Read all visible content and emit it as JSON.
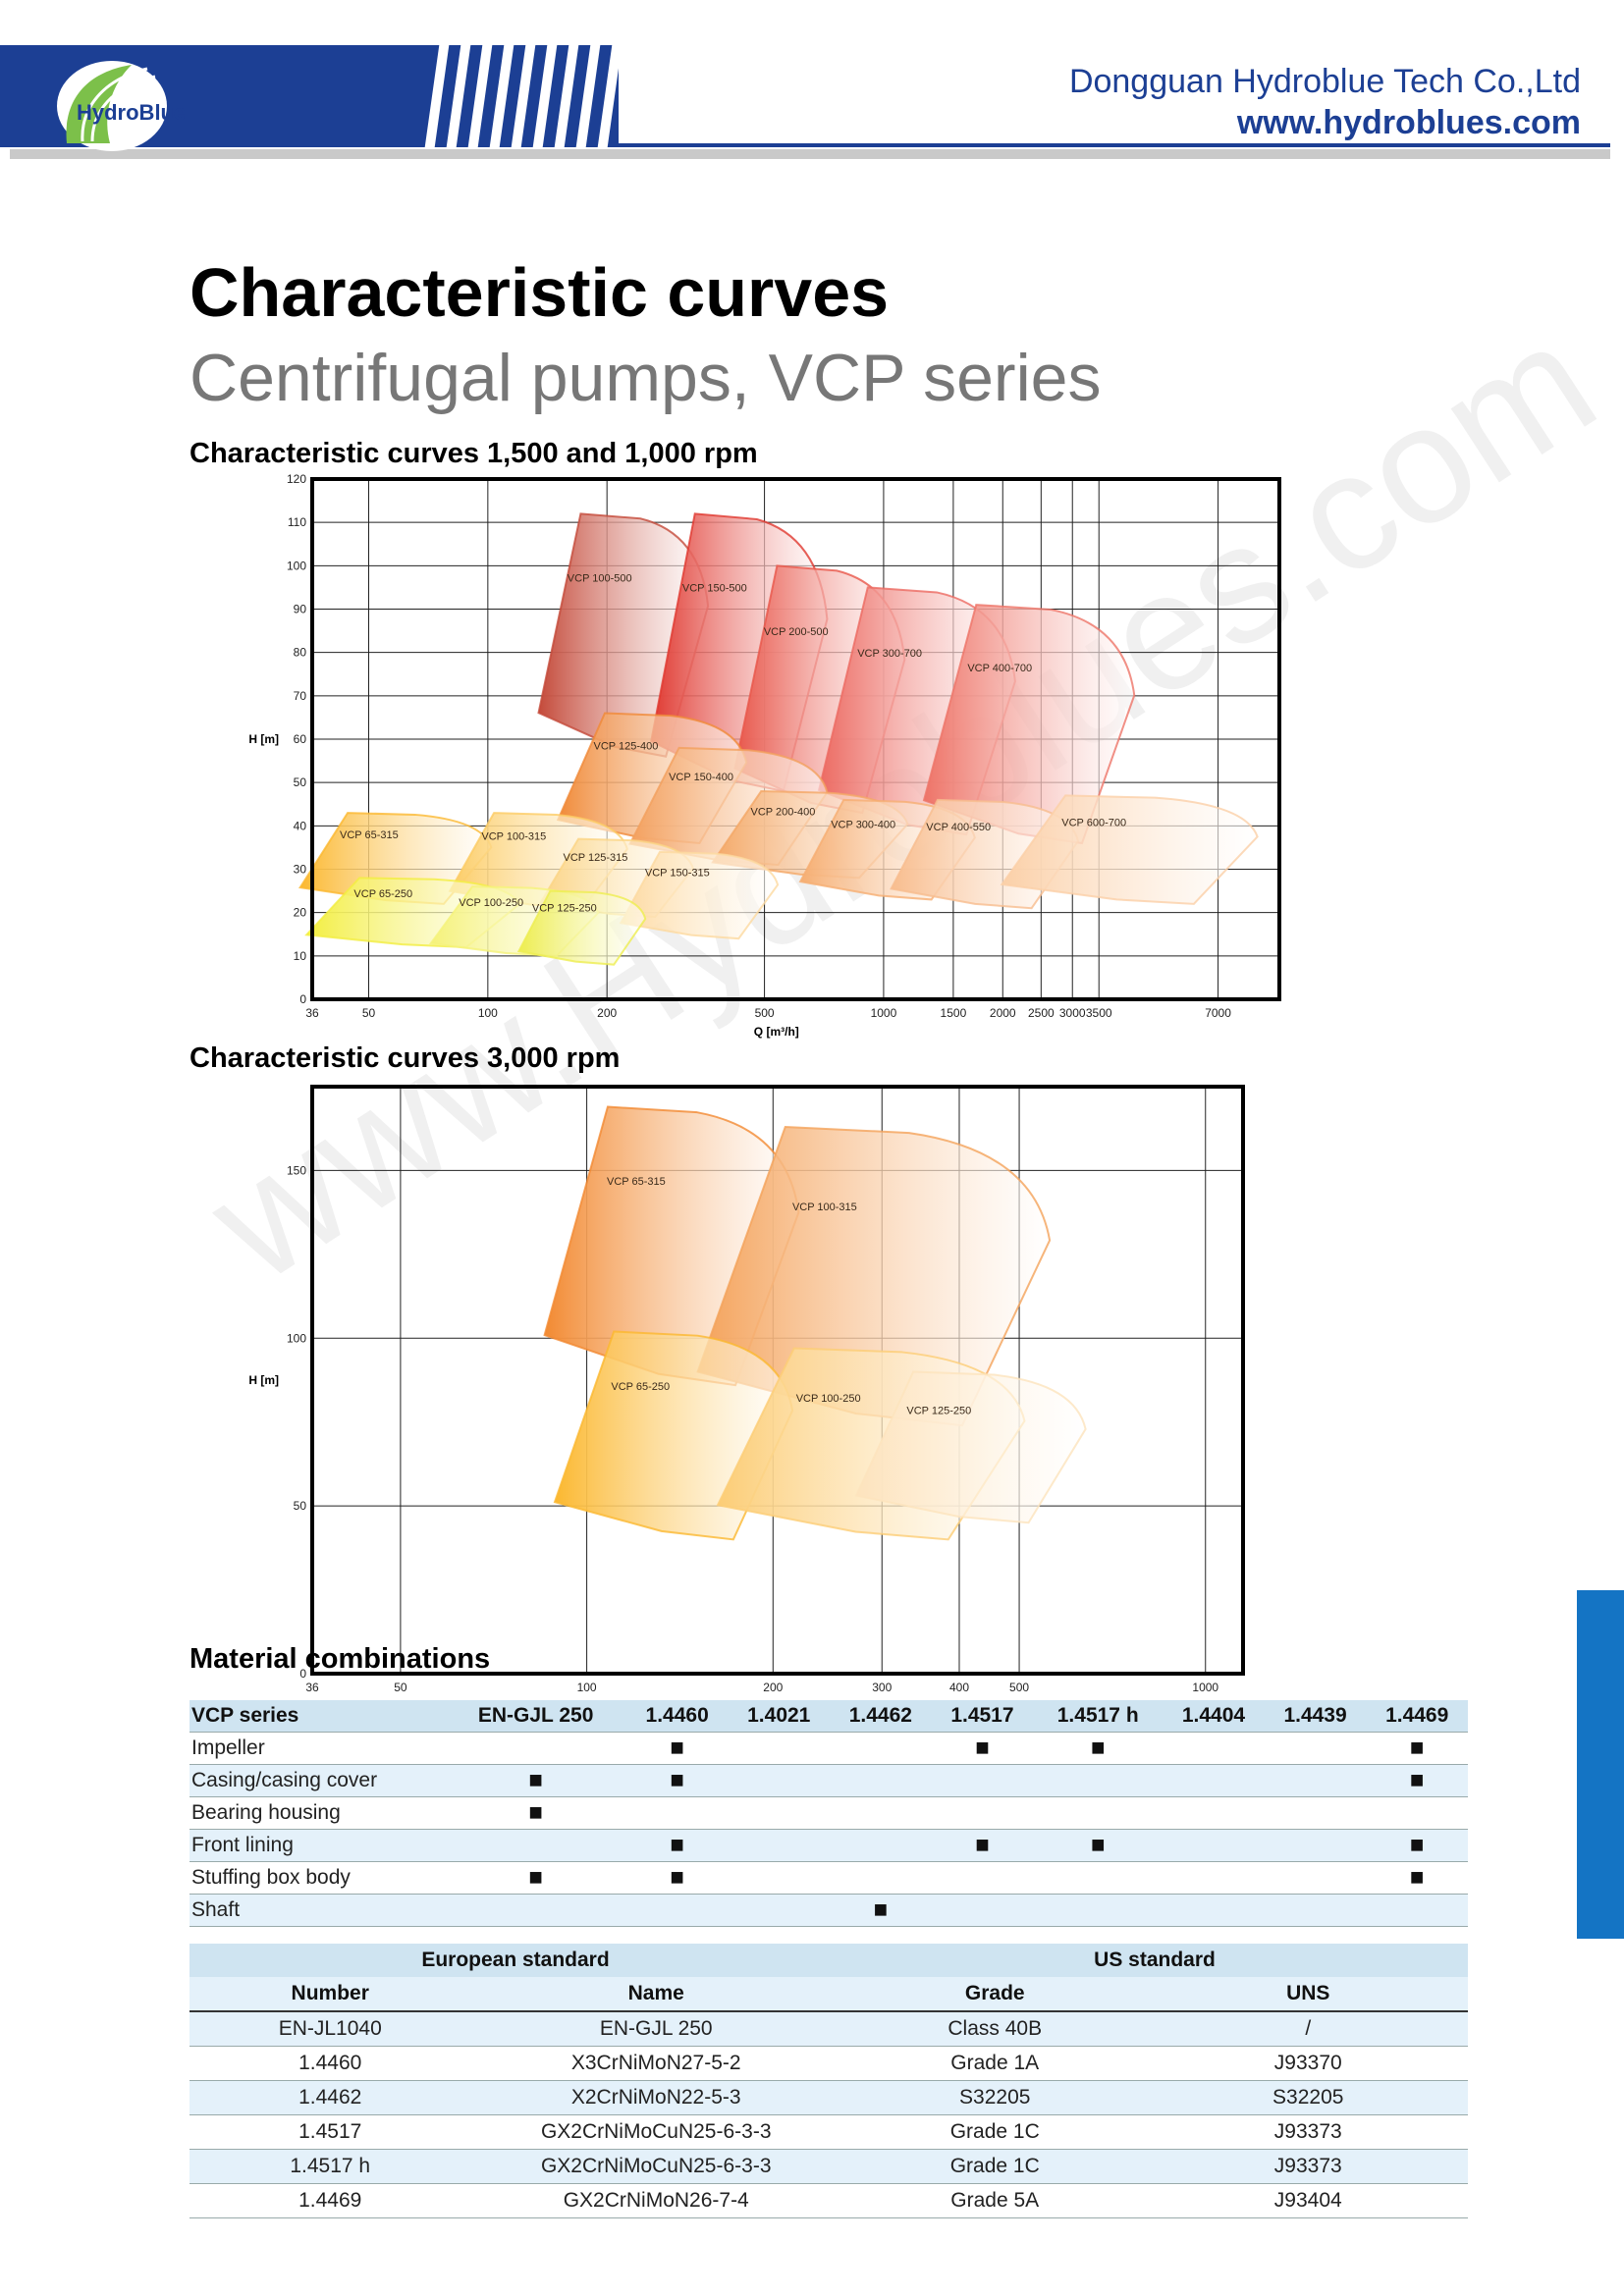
{
  "header": {
    "logo_text": "HydroBlue",
    "company": "Dongguan Hydroblue Tech Co.,Ltd",
    "website": "www.hydroblues.com",
    "brand_color": "#1c3f94"
  },
  "title": "Characteristic curves",
  "subtitle": "Centrifugal pumps, VCP series",
  "watermark": "www.Hydroblues.com",
  "chart_data": [
    {
      "type": "area",
      "title": "Characteristic curves 1,500 and 1,000 rpm",
      "xlabel": "Q [m³/h]",
      "ylabel": "H [m]",
      "x_scale": "log",
      "xlim": [
        36,
        10000
      ],
      "ylim": [
        0,
        120
      ],
      "x_ticks": [
        36,
        50,
        100,
        200,
        500,
        1000,
        1500,
        2000,
        2500,
        3000,
        3500,
        7000
      ],
      "y_ticks": [
        0,
        10,
        20,
        30,
        40,
        50,
        60,
        70,
        80,
        90,
        100,
        110,
        120
      ],
      "grid": true,
      "series": [
        {
          "name": "VCP 100-500",
          "color": "#c44a3a",
          "q": [
            150,
            360
          ],
          "h": [
            56,
            112
          ]
        },
        {
          "name": "VCP 150-500",
          "color": "#e03830",
          "q": [
            290,
            720
          ],
          "h": [
            48,
            112
          ]
        },
        {
          "name": "VCP 200-500",
          "color": "#e8564a",
          "q": [
            470,
            1130
          ],
          "h": [
            43,
            100
          ]
        },
        {
          "name": "VCP 300-700",
          "color": "#ec6a62",
          "q": [
            780,
            2150
          ],
          "h": [
            38,
            95
          ]
        },
        {
          "name": "VCP 400-700",
          "color": "#ee7468",
          "q": [
            1450,
            4300
          ],
          "h": [
            36,
            91
          ]
        },
        {
          "name": "VCP 125-400",
          "color": "#f08a38",
          "q": [
            170,
            450
          ],
          "h": [
            36,
            66
          ]
        },
        {
          "name": "VCP 150-400",
          "color": "#f3a05e",
          "q": [
            260,
            720
          ],
          "h": [
            31,
            58
          ]
        },
        {
          "name": "VCP 200-400",
          "color": "#f4a866",
          "q": [
            420,
            1150
          ],
          "h": [
            28,
            48
          ]
        },
        {
          "name": "VCP 300-400",
          "color": "#f6ae72",
          "q": [
            690,
            1700
          ],
          "h": [
            23,
            46
          ]
        },
        {
          "name": "VCP 400-550",
          "color": "#f8bd8e",
          "q": [
            1180,
            3100
          ],
          "h": [
            21,
            46
          ]
        },
        {
          "name": "VCP 600-700",
          "color": "#fbd0a8",
          "q": [
            2350,
            8800
          ],
          "h": [
            22,
            47
          ]
        },
        {
          "name": "VCP 65-315",
          "color": "#fbb830",
          "q": [
            38,
            102
          ],
          "h": [
            22,
            43
          ]
        },
        {
          "name": "VCP 100-315",
          "color": "#fccc64",
          "q": [
            90,
            225
          ],
          "h": [
            21,
            43
          ]
        },
        {
          "name": "VCP 125-315",
          "color": "#fbd485",
          "q": [
            150,
            330
          ],
          "h": [
            19,
            37
          ]
        },
        {
          "name": "VCP 150-315",
          "color": "#fdd9a0",
          "q": [
            240,
            540
          ],
          "h": [
            14,
            34
          ]
        },
        {
          "name": "VCP 65-250",
          "color": "#f3ee40",
          "q": [
            40,
            120
          ],
          "h": [
            12,
            28
          ]
        },
        {
          "name": "VCP 100-250",
          "color": "#f5f27a",
          "q": [
            80,
            190
          ],
          "h": [
            10,
            26
          ]
        },
        {
          "name": "VCP 125-250",
          "color": "#eded50",
          "q": [
            130,
            250
          ],
          "h": [
            8,
            25
          ]
        }
      ]
    },
    {
      "type": "area",
      "title": "Characteristic curves 3,000 rpm",
      "xlabel": "Q [m³/h]",
      "ylabel": "H [m]",
      "x_scale": "log",
      "xlim": [
        36,
        1150
      ],
      "ylim": [
        0,
        175
      ],
      "x_ticks": [
        36,
        50,
        100,
        200,
        300,
        400,
        500,
        1000
      ],
      "y_ticks": [
        0,
        50,
        100,
        150
      ],
      "grid": true,
      "series": [
        {
          "name": "VCP 65-315",
          "color": "#f28a32",
          "q": [
            95,
            220
          ],
          "h": [
            86,
            169
          ]
        },
        {
          "name": "VCP 100-315",
          "color": "#f4a25a",
          "q": [
            175,
            560
          ],
          "h": [
            74,
            163
          ]
        },
        {
          "name": "VCP 65-250",
          "color": "#fbb830",
          "q": [
            98,
            215
          ],
          "h": [
            40,
            102
          ]
        },
        {
          "name": "VCP 100-250",
          "color": "#fccd76",
          "q": [
            185,
            510
          ],
          "h": [
            40,
            97
          ]
        },
        {
          "name": "VCP 125-250",
          "color": "#fde3bd",
          "q": [
            300,
            640
          ],
          "h": [
            45,
            90
          ]
        }
      ]
    }
  ],
  "materials": {
    "heading": "Material combinations",
    "columns": [
      "VCP series",
      "EN-GJL 250",
      "1.4460",
      "1.4021",
      "1.4462",
      "1.4517",
      "1.4517 h",
      "1.4404",
      "1.4439",
      "1.4469"
    ],
    "marker": "■",
    "rows": [
      {
        "label": "Impeller",
        "marks": [
          false,
          true,
          false,
          false,
          true,
          true,
          false,
          false,
          true
        ]
      },
      {
        "label": "Casing/casing cover",
        "marks": [
          true,
          true,
          false,
          false,
          false,
          false,
          false,
          false,
          true
        ]
      },
      {
        "label": "Bearing housing",
        "marks": [
          true,
          false,
          false,
          false,
          false,
          false,
          false,
          false,
          false
        ]
      },
      {
        "label": "Front lining",
        "marks": [
          false,
          true,
          false,
          false,
          true,
          true,
          false,
          false,
          true
        ]
      },
      {
        "label": "Stuffing box body",
        "marks": [
          true,
          true,
          false,
          false,
          false,
          false,
          false,
          false,
          true
        ]
      },
      {
        "label": "Shaft",
        "marks": [
          false,
          false,
          false,
          true,
          false,
          false,
          false,
          false,
          false
        ]
      }
    ]
  },
  "standards": {
    "european": "European standard",
    "us": "US standard",
    "columns": [
      "Number",
      "Name",
      "Grade",
      "UNS"
    ],
    "rows": [
      [
        "EN-JL1040",
        "EN-GJL 250",
        "Class 40B",
        "/"
      ],
      [
        "1.4460",
        "X3CrNiMoN27-5-2",
        "Grade 1A",
        "J93370"
      ],
      [
        "1.4462",
        "X2CrNiMoN22-5-3",
        "S32205",
        "S32205"
      ],
      [
        "1.4517",
        "GX2CrNiMoCuN25-6-3-3",
        "Grade 1C",
        "J93373"
      ],
      [
        "1.4517 h",
        "GX2CrNiMoCuN25-6-3-3",
        "Grade 1C",
        "J93373"
      ],
      [
        "1.4469",
        "GX2CrNiMoN26-7-4",
        "Grade 5A",
        "J93404"
      ]
    ]
  }
}
